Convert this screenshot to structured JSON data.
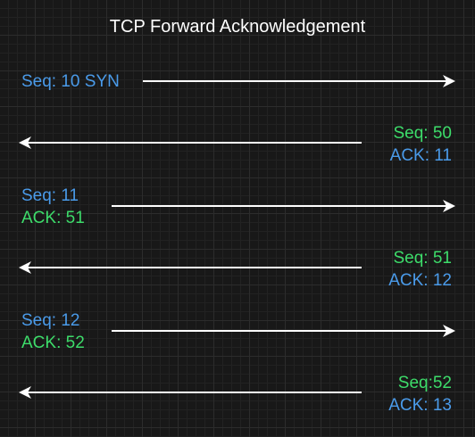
{
  "title": "TCP Forward Acknowledgement",
  "colors": {
    "blue": "#4a9bea",
    "green": "#3ddc6a",
    "arrow": "#ffffff",
    "background": "#181818"
  },
  "messages": [
    {
      "direction": "right",
      "lines": [
        {
          "text": "Seq: 10 SYN",
          "color": "blue"
        }
      ]
    },
    {
      "direction": "left",
      "lines": [
        {
          "text": "Seq: 50",
          "color": "green"
        },
        {
          "text": "ACK: 11",
          "color": "blue"
        }
      ]
    },
    {
      "direction": "right",
      "lines": [
        {
          "text": "Seq: 11",
          "color": "blue"
        },
        {
          "text": "ACK: 51",
          "color": "green"
        }
      ]
    },
    {
      "direction": "left",
      "lines": [
        {
          "text": "Seq: 51",
          "color": "green"
        },
        {
          "text": "ACK: 12",
          "color": "blue"
        }
      ]
    },
    {
      "direction": "right",
      "lines": [
        {
          "text": "Seq: 12",
          "color": "blue"
        },
        {
          "text": "ACK: 52",
          "color": "green"
        }
      ]
    },
    {
      "direction": "left",
      "lines": [
        {
          "text": "Seq:52",
          "color": "green"
        },
        {
          "text": "ACK: 13",
          "color": "blue"
        }
      ]
    }
  ]
}
